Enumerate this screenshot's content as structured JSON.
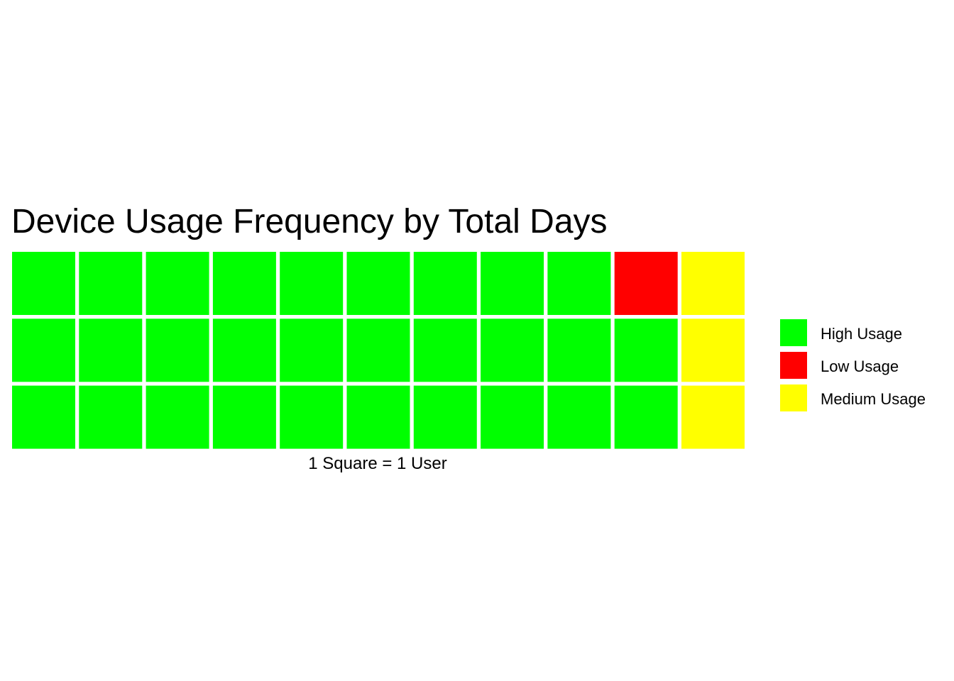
{
  "chart_data": {
    "type": "waffle",
    "title": "Device Usage Frequency by Total Days",
    "caption": "1 Square = 1 User",
    "rows": 3,
    "columns": 11,
    "fill_order": "column-major, top-to-bottom, left-to-right",
    "categories": [
      {
        "name": "High Usage",
        "count": 29,
        "color": "#00ff00"
      },
      {
        "name": "Low Usage",
        "count": 1,
        "color": "#ff0000"
      },
      {
        "name": "Medium Usage",
        "count": 3,
        "color": "#ffff00"
      }
    ],
    "cells": [
      [
        "High Usage",
        "High Usage",
        "High Usage",
        "High Usage",
        "High Usage",
        "High Usage",
        "High Usage",
        "High Usage",
        "High Usage",
        "Low Usage",
        "Medium Usage"
      ],
      [
        "High Usage",
        "High Usage",
        "High Usage",
        "High Usage",
        "High Usage",
        "High Usage",
        "High Usage",
        "High Usage",
        "High Usage",
        "High Usage",
        "Medium Usage"
      ],
      [
        "High Usage",
        "High Usage",
        "High Usage",
        "High Usage",
        "High Usage",
        "High Usage",
        "High Usage",
        "High Usage",
        "High Usage",
        "High Usage",
        "Medium Usage"
      ]
    ],
    "legend_placement": "right",
    "grid": false
  }
}
